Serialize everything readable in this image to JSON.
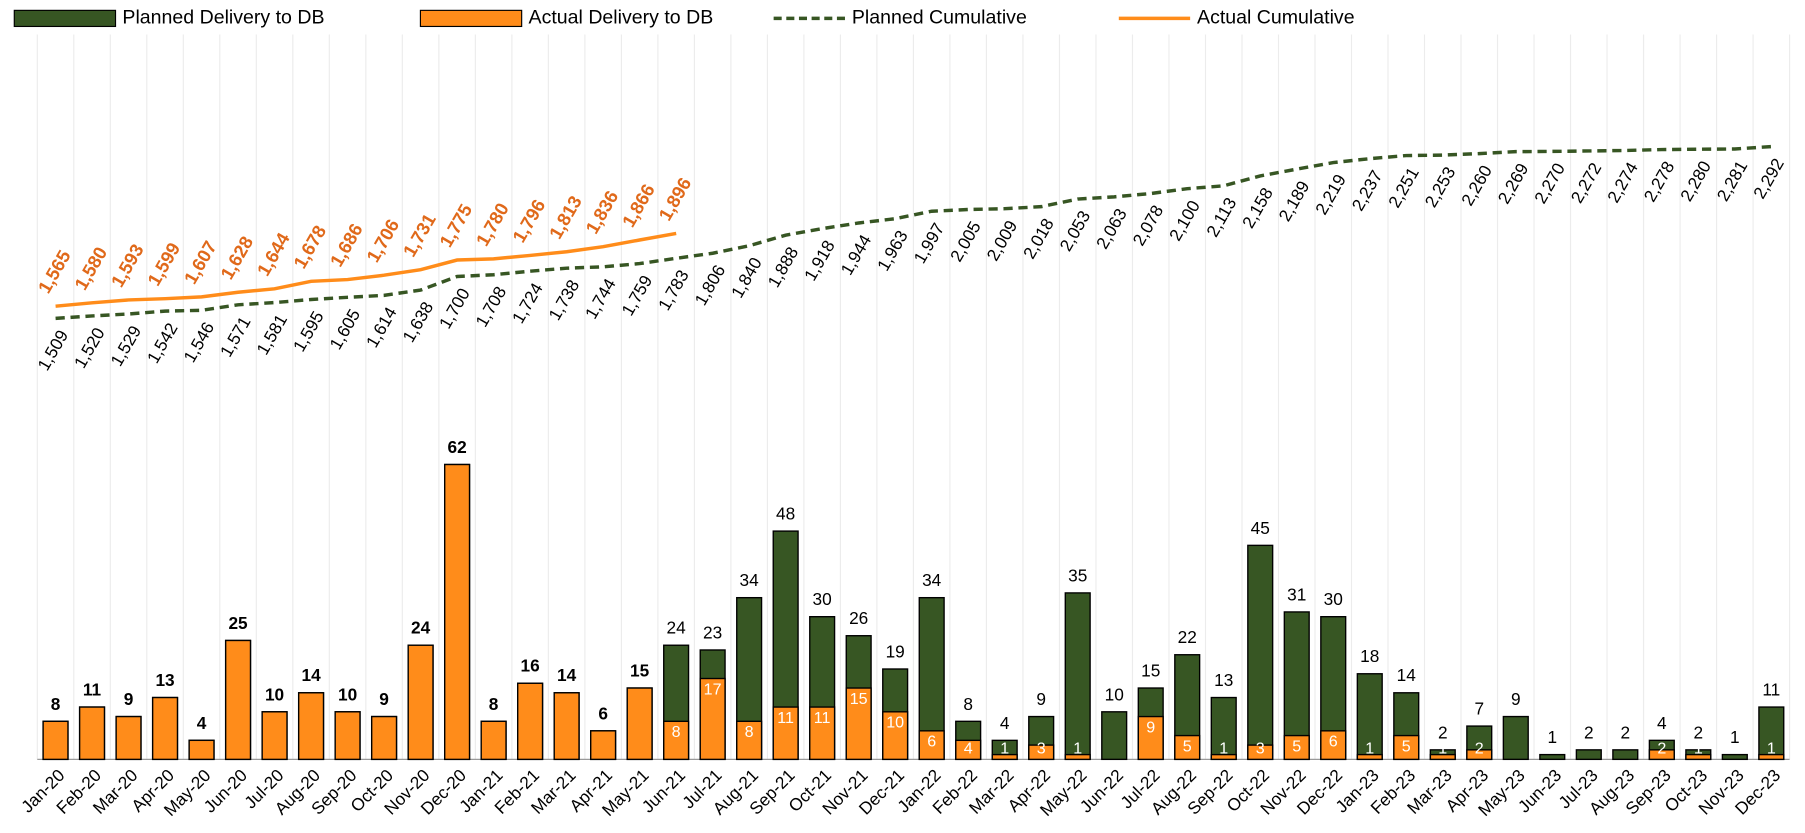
{
  "chart_data": {
    "type": "bar",
    "legend": "top",
    "grid": true,
    "categories": [
      "Jan-20",
      "Feb-20",
      "Mar-20",
      "Apr-20",
      "May-20",
      "Jun-20",
      "Jul-20",
      "Aug-20",
      "Sep-20",
      "Oct-20",
      "Nov-20",
      "Dec-20",
      "Jan-21",
      "Feb-21",
      "Mar-21",
      "Apr-21",
      "May-21",
      "Jun-21",
      "Jul-21",
      "Aug-21",
      "Sep-21",
      "Oct-21",
      "Nov-21",
      "Dec-21",
      "Jan-22",
      "Feb-22",
      "Mar-22",
      "Apr-22",
      "May-22",
      "Jun-22",
      "Jul-22",
      "Aug-22",
      "Sep-22",
      "Oct-22",
      "Nov-22",
      "Dec-22",
      "Jan-23",
      "Feb-23",
      "Mar-23",
      "Apr-23",
      "May-23",
      "Jun-23",
      "Jul-23",
      "Aug-23",
      "Sep-23",
      "Oct-23",
      "Nov-23",
      "Dec-23"
    ],
    "ylim": [
      0,
      150
    ],
    "y2lim": [
      -500,
      2750
    ],
    "series": [
      {
        "name": "Planned Delivery to DB",
        "type": "bar",
        "color": "#375623",
        "values": [
          8,
          11,
          9,
          13,
          4,
          25,
          10,
          14,
          10,
          9,
          24,
          62,
          8,
          16,
          14,
          6,
          15,
          24,
          23,
          34,
          48,
          30,
          26,
          19,
          34,
          8,
          4,
          9,
          35,
          10,
          15,
          22,
          13,
          45,
          31,
          30,
          18,
          14,
          2,
          7,
          9,
          1,
          2,
          2,
          4,
          2,
          1,
          11
        ]
      },
      {
        "name": "Actual Delivery to DB",
        "type": "bar",
        "color": "#ff8c1a",
        "values": [
          8,
          11,
          9,
          13,
          4,
          25,
          10,
          14,
          10,
          9,
          24,
          62,
          8,
          16,
          14,
          6,
          15,
          8,
          17,
          8,
          11,
          11,
          15,
          10,
          6,
          4,
          1,
          3,
          1,
          null,
          9,
          5,
          1,
          3,
          5,
          6,
          1,
          5,
          1,
          2,
          null,
          null,
          null,
          null,
          2,
          1,
          null,
          1
        ]
      },
      {
        "name": "Planned Cumulative",
        "type": "line",
        "axis": "y2",
        "color": "#375623",
        "dashed": true,
        "values": [
          1509,
          1520,
          1529,
          1542,
          1546,
          1571,
          1581,
          1595,
          1605,
          1614,
          1638,
          1700,
          1708,
          1724,
          1738,
          1744,
          1759,
          1783,
          1806,
          1840,
          1888,
          1918,
          1944,
          1963,
          1997,
          2005,
          2009,
          2018,
          2053,
          2063,
          2078,
          2100,
          2113,
          2158,
          2189,
          2219,
          2237,
          2251,
          2253,
          2260,
          2269,
          2270,
          2272,
          2274,
          2278,
          2280,
          2281,
          2292
        ],
        "value_labels": [
          "1,509",
          "1,520",
          "1,529",
          "1,542",
          "1,546",
          "1,571",
          "1,581",
          "1,595",
          "1,605",
          "1,614",
          "1,638",
          "1,700",
          "1,708",
          "1,724",
          "1,738",
          "1,744",
          "1,759",
          "1,783",
          "1,806",
          "1,840",
          "1,888",
          "1,918",
          "1,944",
          "1,963",
          "1,997",
          "2,005",
          "2,009",
          "2,018",
          "2,053",
          "2,063",
          "2,078",
          "2,100",
          "2,113",
          "2,158",
          "2,189",
          "2,219",
          "2,237",
          "2,251",
          "2,253",
          "2,260",
          "2,269",
          "2,270",
          "2,272",
          "2,274",
          "2,278",
          "2,280",
          "2,281",
          "2,292"
        ]
      },
      {
        "name": "Actual Cumulative",
        "type": "line",
        "axis": "y2",
        "color": "#ff8c1a",
        "label_color": "#e0691a",
        "values": [
          1565,
          1580,
          1593,
          1599,
          1607,
          1628,
          1644,
          1678,
          1686,
          1706,
          1731,
          1775,
          1780,
          1796,
          1813,
          1836,
          1866,
          1896,
          null,
          null,
          null,
          null,
          null,
          null,
          null,
          null,
          null,
          null,
          null,
          null,
          null,
          null,
          null,
          null,
          null,
          null,
          null,
          null,
          null,
          null,
          null,
          null,
          null,
          null,
          null,
          null,
          null,
          null
        ],
        "value_labels": [
          "1,565",
          "1,580",
          "1,593",
          "1,599",
          "1,607",
          "1,628",
          "1,644",
          "1,678",
          "1,686",
          "1,706",
          "1,731",
          "1,775",
          "1,780",
          "1,796",
          "1,813",
          "1,836",
          "1,866",
          "1,896",
          null,
          null,
          null,
          null,
          null,
          null,
          null,
          null,
          null,
          null,
          null,
          null,
          null,
          null,
          null,
          null,
          null,
          null,
          null,
          null,
          null,
          null,
          null,
          null,
          null,
          null,
          null,
          null,
          null,
          null
        ]
      }
    ]
  }
}
